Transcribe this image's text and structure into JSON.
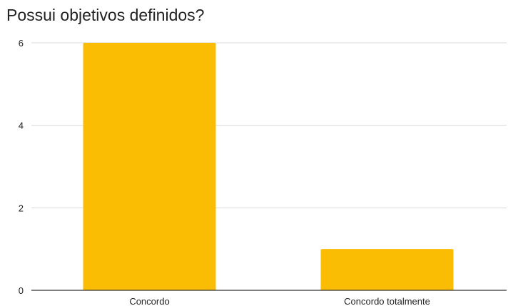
{
  "chart_data": {
    "type": "bar",
    "title": "Possui objetivos definidos?",
    "xlabel": "",
    "ylabel": "",
    "categories": [
      "Concordo",
      "Concordo totalmente"
    ],
    "values": [
      6,
      1
    ],
    "ylim": [
      0,
      6
    ],
    "yticks": [
      0,
      2,
      4,
      6
    ],
    "grid": true,
    "bar_color": "#fbbc04",
    "grid_color": "#dadada",
    "axis_color": "#333333"
  }
}
